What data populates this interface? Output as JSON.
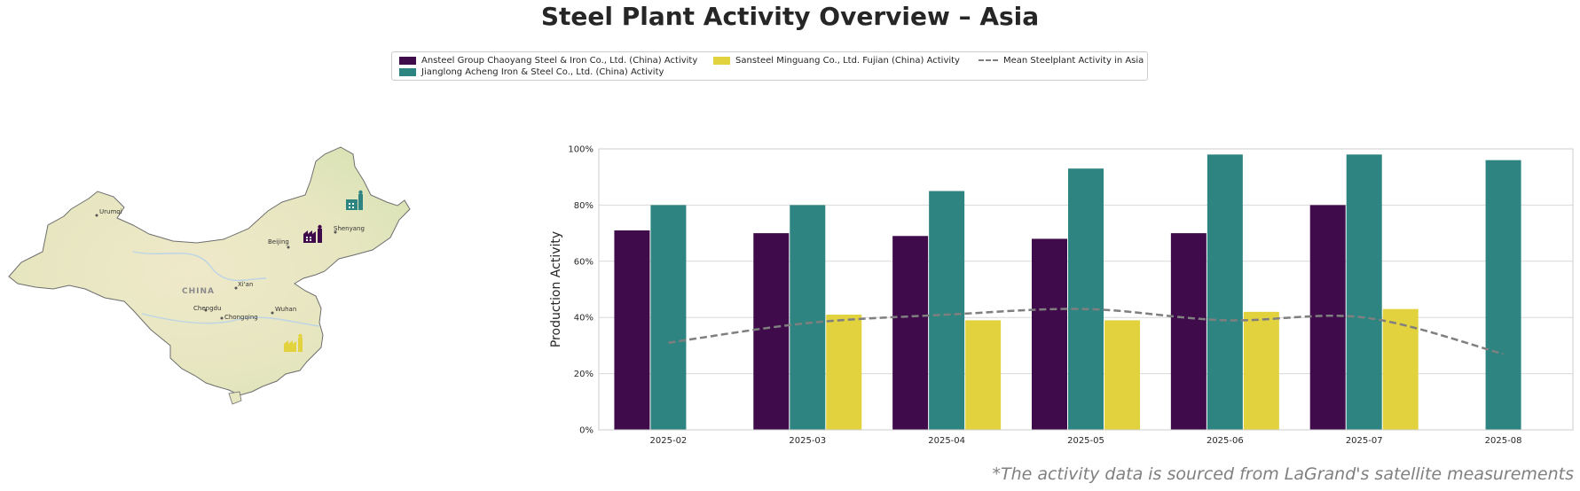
{
  "title": "Steel Plant Activity Overview – Asia",
  "source_note": "*The activity data is sourced from LaGrand's satellite measurements",
  "colors": {
    "ansteel": "#3f0b4b",
    "jianglong": "#2e8480",
    "sansteel": "#e2d23e",
    "mean": "#7f7f7f"
  },
  "legend": [
    {
      "label": "Ansteel Group Chaoyang Steel & Iron Co., Ltd. (China) Activity",
      "color": "#3f0b4b",
      "kind": "patch"
    },
    {
      "label": "Jianglong Acheng Iron & Steel Co., Ltd. (China) Activity",
      "color": "#2e8480",
      "kind": "patch"
    },
    {
      "label": "Sansteel Minguang Co., Ltd. Fujian (China) Activity",
      "color": "#e2d23e",
      "kind": "patch"
    },
    {
      "label": "Mean Steelplant Activity in Asia",
      "color": "#7f7f7f",
      "kind": "dashed-line"
    }
  ],
  "map": {
    "country_label": "CHINA",
    "cities": [
      "Urumqi",
      "Beijing",
      "Shenyang",
      "Xi'an",
      "Chengdu",
      "Chongqing",
      "Wuhan"
    ],
    "plant_icons": [
      {
        "name": "ansteel-plant-icon",
        "color": "#3f0b4b"
      },
      {
        "name": "jianglong-plant-icon",
        "color": "#2e8480"
      },
      {
        "name": "sansteel-plant-icon",
        "color": "#e2d23e"
      }
    ]
  },
  "chart_data": {
    "type": "bar",
    "categories": [
      "2025-02",
      "2025-03",
      "2025-04",
      "2025-05",
      "2025-06",
      "2025-07",
      "2025-08"
    ],
    "series": [
      {
        "name": "Ansteel Group Chaoyang Steel & Iron Co., Ltd. (China) Activity",
        "color": "#3f0b4b",
        "values": [
          71,
          70,
          69,
          68,
          70,
          80,
          null
        ]
      },
      {
        "name": "Jianglong Acheng Iron & Steel Co., Ltd. (China) Activity",
        "color": "#2e8480",
        "values": [
          80,
          80,
          85,
          93,
          98,
          98,
          96
        ]
      },
      {
        "name": "Sansteel Minguang Co., Ltd. Fujian (China) Activity",
        "color": "#e2d23e",
        "values": [
          null,
          41,
          39,
          39,
          42,
          43,
          null
        ]
      }
    ],
    "line": {
      "name": "Mean Steelplant Activity in Asia",
      "style": "dashed",
      "color": "#7f7f7f",
      "values": [
        31,
        38,
        41,
        43,
        39,
        40,
        27
      ]
    },
    "ylabel": "Production Activity",
    "xlabel": "",
    "ylim": [
      0,
      100
    ],
    "yticks": [
      "0%",
      "20%",
      "40%",
      "60%",
      "80%",
      "100%"
    ],
    "grid": "horizontal"
  }
}
